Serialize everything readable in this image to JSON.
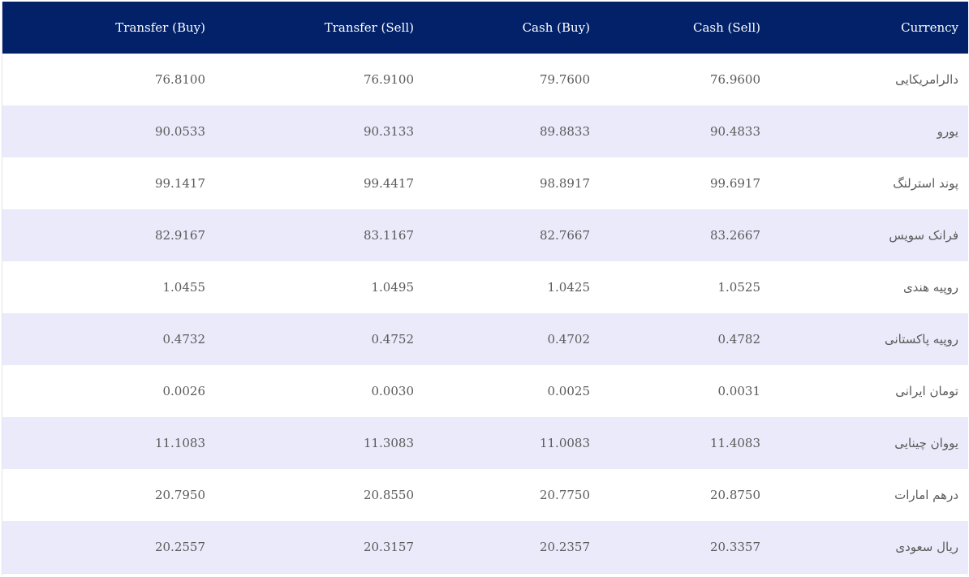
{
  "header": {
    "transfer_buy": "Transfer (Buy)",
    "transfer_sell": "Transfer (Sell)",
    "cash_buy": "Cash (Buy)",
    "cash_sell": "Cash (Sell)",
    "currency": "Currency"
  },
  "rows": [
    {
      "transfer_buy": "76.8100",
      "transfer_sell": "76.9100",
      "cash_buy": "79.7600",
      "cash_sell": "76.9600",
      "currency": "دالرامریکایی"
    },
    {
      "transfer_buy": "90.0533",
      "transfer_sell": "90.3133",
      "cash_buy": "89.8833",
      "cash_sell": "90.4833",
      "currency": "یورو"
    },
    {
      "transfer_buy": "99.1417",
      "transfer_sell": "99.4417",
      "cash_buy": "98.8917",
      "cash_sell": "99.6917",
      "currency": "پوند استرلنگ"
    },
    {
      "transfer_buy": "82.9167",
      "transfer_sell": "83.1167",
      "cash_buy": "82.7667",
      "cash_sell": "83.2667",
      "currency": "فرانک سویس"
    },
    {
      "transfer_buy": "1.0455",
      "transfer_sell": "1.0495",
      "cash_buy": "1.0425",
      "cash_sell": "1.0525",
      "currency": "روپیه هندی"
    },
    {
      "transfer_buy": "0.4732",
      "transfer_sell": "0.4752",
      "cash_buy": "0.4702",
      "cash_sell": "0.4782",
      "currency": "روپیه پاکستانی"
    },
    {
      "transfer_buy": "0.0026",
      "transfer_sell": "0.0030",
      "cash_buy": "0.0025",
      "cash_sell": "0.0031",
      "currency": "تومان ایرانی"
    },
    {
      "transfer_buy": "11.1083",
      "transfer_sell": "11.3083",
      "cash_buy": "11.0083",
      "cash_sell": "11.4083",
      "currency": "یووان چینایی"
    },
    {
      "transfer_buy": "20.7950",
      "transfer_sell": "20.8550",
      "cash_buy": "20.7750",
      "cash_sell": "20.8750",
      "currency": "درهم امارات"
    },
    {
      "transfer_buy": "20.2557",
      "transfer_sell": "20.3157",
      "cash_buy": "20.2357",
      "cash_sell": "20.3357",
      "currency": "ریال سعودی"
    }
  ],
  "colors": {
    "header_bg": "#022169",
    "stripe_bg": "#eaeafb",
    "text": "#5a5a5a"
  }
}
